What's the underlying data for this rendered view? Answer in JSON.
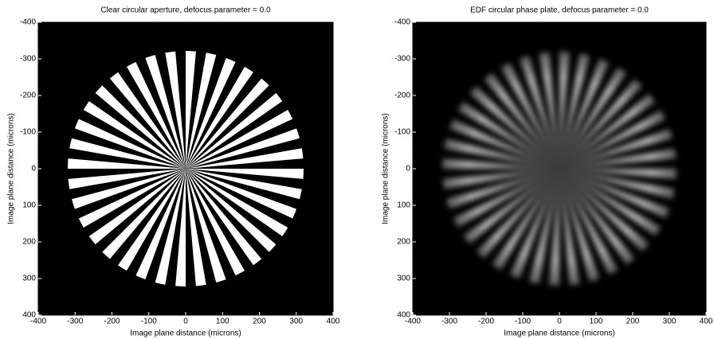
{
  "chart_data": [
    {
      "type": "image",
      "title": "Clear circular aperture, defocus parameter = 0.0",
      "xlabel": "Image plane distance (microns)",
      "ylabel": "Image plane distance (microns)",
      "xlim": [
        -400,
        400
      ],
      "ylim": [
        400,
        -400
      ],
      "xticks": [
        -400,
        -300,
        -200,
        -100,
        0,
        100,
        200,
        300,
        400
      ],
      "yticks": [
        -400,
        -300,
        -200,
        -100,
        0,
        100,
        200,
        300,
        400
      ]
    },
    {
      "type": "image",
      "title": "EDF circular phase plate, defocus parameter = 0.0",
      "xlabel": "Image plane distance (microns)",
      "ylabel": "Image plane distance (microns)",
      "xlim": [
        -400,
        400
      ],
      "ylim": [
        400,
        -400
      ],
      "xticks": [
        -400,
        -300,
        -200,
        -100,
        0,
        100,
        200,
        300,
        400
      ],
      "yticks": [
        -400,
        -300,
        -200,
        -100,
        0,
        100,
        200,
        300,
        400
      ]
    }
  ]
}
